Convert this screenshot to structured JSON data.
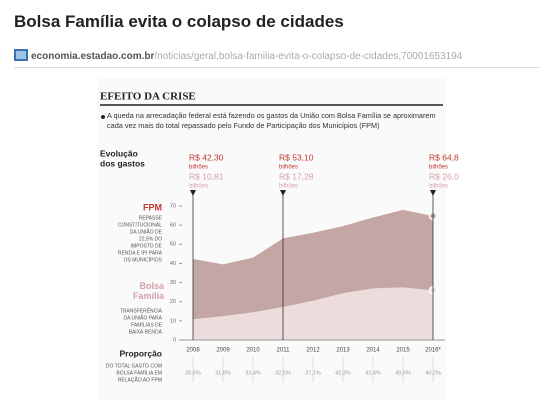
{
  "page": {
    "title": "Bolsa Família evita o colapso de cidades",
    "source_domain": "economia.estadao.com.br",
    "source_path": "/noticias/geral,bolsa-familia-evita-o-colapso-de-cidades,70001653194"
  },
  "chart_data": {
    "type": "area",
    "title": "EFEITO DA CRISE",
    "subtitle": "A queda na arrecadação federal está fazendo os gastos da União com Bolsa Família se aproximarem cada vez mais do total repassado pelo Fundo de Participação dos Municípios (FPM)",
    "evolution_label": [
      "Evolução",
      "dos gastos"
    ],
    "categories": [
      "2008",
      "2009",
      "2010",
      "2011",
      "2012",
      "2013",
      "2014",
      "2015",
      "2016*"
    ],
    "series": [
      {
        "name": "FPM",
        "description": [
          "REPASSE",
          "CONSTITUCIONAL",
          "DA UNIÃO DE",
          "22,5% DO",
          "IMPOSTO DE",
          "RENDA E IPI PARA",
          "OS MUNICÍPIOS"
        ],
        "color": "#c4a6a4",
        "label_color": "#c0392b",
        "values": [
          42.3,
          39.5,
          43,
          53.1,
          56,
          59.5,
          64,
          68,
          64.8
        ]
      },
      {
        "name": "Bolsa Família",
        "description": [
          "TRANSFERÊNCIA",
          "DA UNIÃO PARA",
          "FAMÍLIAS DE",
          "BAIXA RENDA"
        ],
        "color": "#ecdcdb",
        "label_color": "#d4a0a8",
        "values": [
          10.81,
          12.5,
          14.5,
          17.28,
          20.5,
          24.5,
          27,
          27.5,
          26.0
        ]
      }
    ],
    "annotations": [
      {
        "index": 0,
        "fpm": "R$ 42,30",
        "bolsa": "R$ 10,81",
        "unit": "bilhões"
      },
      {
        "index": 3,
        "fpm": "R$ 53,10",
        "bolsa": "R$ 17,28",
        "unit": "bilhões"
      },
      {
        "index": 8,
        "fpm": "R$ 64,8",
        "bolsa": "R$ 26,0",
        "unit": "bilhões"
      }
    ],
    "proportion_label": "Proporção",
    "proportion_description": [
      "DO TOTAL GASTO COM",
      "BOLSA FAMÍLIA EM",
      "RELAÇÃO AO FPM"
    ],
    "proportion": [
      "25,6%",
      "31,8%",
      "33,4%",
      "32,5%",
      "37,1%",
      "42,3%",
      "42,4%",
      "40,6%",
      "40,2%"
    ],
    "ylim": [
      0,
      70
    ],
    "yticks": [
      0,
      10,
      20,
      30,
      40,
      50,
      60,
      70
    ],
    "grid": false
  }
}
